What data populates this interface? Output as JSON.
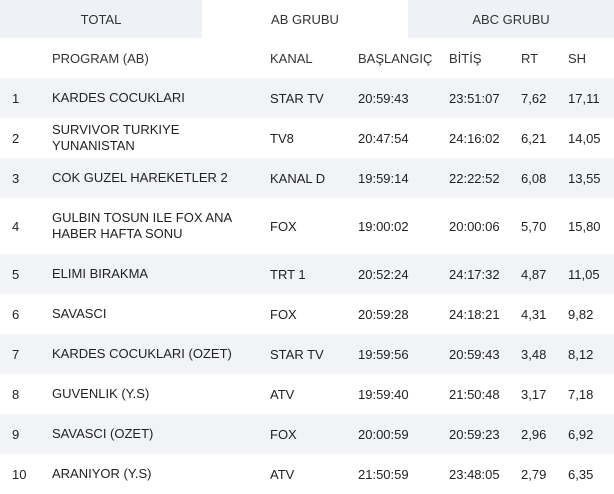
{
  "tabs": [
    {
      "label": "TOTAL",
      "active": false
    },
    {
      "label": "AB GRUBU",
      "active": true
    },
    {
      "label": "ABC GRUBU",
      "active": false
    }
  ],
  "table": {
    "headers": {
      "rank": "",
      "program": "PROGRAM (AB)",
      "kanal": "KANAL",
      "baslangic": "BAŞLANGIÇ",
      "bitis": "BİTİŞ",
      "rt": "RT",
      "sh": "SH"
    },
    "rows": [
      {
        "rank": "1",
        "program": "KARDES COCUKLARI",
        "kanal": "STAR TV",
        "baslangic": "20:59:43",
        "bitis": "23:51:07",
        "rt": "7,62",
        "sh": "17,11"
      },
      {
        "rank": "2",
        "program": "SURVIVOR TURKIYE YUNANISTAN",
        "kanal": "TV8",
        "baslangic": "20:47:54",
        "bitis": "24:16:02",
        "rt": "6,21",
        "sh": "14,05"
      },
      {
        "rank": "3",
        "program": "COK GUZEL HAREKETLER 2",
        "kanal": "KANAL D",
        "baslangic": "19:59:14",
        "bitis": "22:22:52",
        "rt": "6,08",
        "sh": "13,55"
      },
      {
        "rank": "4",
        "program": "GULBIN TOSUN ILE FOX ANA HABER HAFTA SONU",
        "kanal": "FOX",
        "baslangic": "19:00:02",
        "bitis": "20:00:06",
        "rt": "5,70",
        "sh": "15,80"
      },
      {
        "rank": "5",
        "program": "ELIMI BIRAKMA",
        "kanal": "TRT 1",
        "baslangic": "20:52:24",
        "bitis": "24:17:32",
        "rt": "4,87",
        "sh": "11,05"
      },
      {
        "rank": "6",
        "program": "SAVASCI",
        "kanal": "FOX",
        "baslangic": "20:59:28",
        "bitis": "24:18:21",
        "rt": "4,31",
        "sh": "9,82"
      },
      {
        "rank": "7",
        "program": "KARDES COCUKLARI (OZET)",
        "kanal": "STAR TV",
        "baslangic": "19:59:56",
        "bitis": "20:59:43",
        "rt": "3,48",
        "sh": "8,12"
      },
      {
        "rank": "8",
        "program": "GUVENLIK (Y.S)",
        "kanal": "ATV",
        "baslangic": "19:59:40",
        "bitis": "21:50:48",
        "rt": "3,17",
        "sh": "7,18"
      },
      {
        "rank": "9",
        "program": "SAVASCI (OZET)",
        "kanal": "FOX",
        "baslangic": "20:00:59",
        "bitis": "20:59:23",
        "rt": "2,96",
        "sh": "6,92"
      },
      {
        "rank": "10",
        "program": "ARANIYOR (Y.S)",
        "kanal": "ATV",
        "baslangic": "21:50:59",
        "bitis": "23:48:05",
        "rt": "2,79",
        "sh": "6,35"
      }
    ]
  }
}
